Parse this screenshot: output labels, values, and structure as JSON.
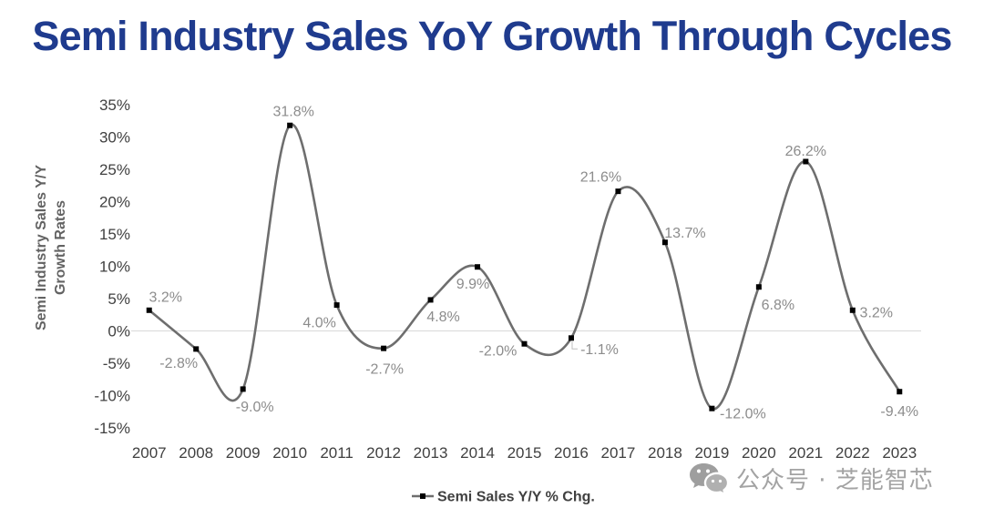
{
  "chart_data": {
    "type": "line",
    "smooth": true,
    "title": "Semi Industry Sales YoY Growth Through Cycles",
    "ylabel": "Semi Industry Sales Y/Y Growth Rates",
    "categories": [
      "2007",
      "2008",
      "2009",
      "2010",
      "2011",
      "2012",
      "2013",
      "2014",
      "2015",
      "2016",
      "2017",
      "2018",
      "2019",
      "2020",
      "2021",
      "2022",
      "2023"
    ],
    "series": [
      {
        "name": "Semi Sales Y/Y % Chg.",
        "values": [
          3.2,
          -2.8,
          -9.0,
          31.8,
          4.0,
          -2.7,
          4.8,
          9.9,
          -2.0,
          -1.1,
          21.6,
          13.7,
          -12.0,
          6.8,
          26.2,
          3.2,
          -9.4
        ],
        "data_labels": [
          "3.2%",
          "-2.8%",
          "-9.0%",
          "31.8%",
          "4.0%",
          "-2.7%",
          "4.8%",
          "9.9%",
          "-2.0%",
          "-1.1%",
          "21.6%",
          "13.7%",
          "-12.0%",
          "6.8%",
          "26.2%",
          "3.2%",
          "-9.4%"
        ],
        "marker": "square",
        "color": "#6E6E6E",
        "marker_color": "#000000"
      }
    ],
    "ylim": [
      -15,
      35
    ],
    "yticks": [
      35,
      30,
      25,
      20,
      15,
      10,
      5,
      0,
      -5,
      -10,
      -15
    ],
    "ytick_labels": [
      "35%",
      "30%",
      "25%",
      "20%",
      "15%",
      "10%",
      "5%",
      "0%",
      "-5%",
      "-10%",
      "-15%"
    ],
    "grid": false,
    "zero_line": true,
    "legend": "bottom"
  },
  "colors": {
    "title": "#1F3B8E",
    "axis_text": "#404040",
    "data_label": "#8C8C8C",
    "zero_line": "#D9D9D9"
  },
  "watermark": {
    "icon": "wechat-icon",
    "text": "公众号 · 芝能智芯"
  }
}
